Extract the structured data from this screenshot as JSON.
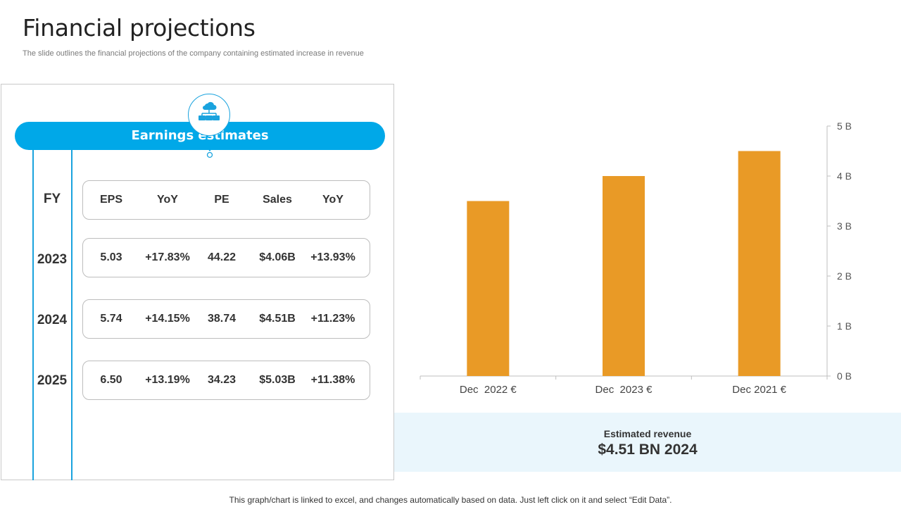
{
  "header": {
    "title": "Financial projections",
    "subtitle": "The slide outlines the financial projections of the company containing estimated increase in revenue"
  },
  "earnings": {
    "banner_label": "Earnings estimates",
    "icon": "cloud-network-icon",
    "fy_label": "FY",
    "columns": [
      "EPS",
      "YoY",
      "PE",
      "Sales",
      "YoY"
    ],
    "rows": [
      {
        "year": "2023",
        "values": [
          "5.03",
          "+17.83%",
          "44.22",
          "$4.06B",
          "+13.93%"
        ]
      },
      {
        "year": "2024",
        "values": [
          "5.74",
          "+14.15%",
          "38.74",
          "$4.51B",
          "+11.23%"
        ]
      },
      {
        "year": "2025",
        "values": [
          "6.50",
          "+13.19%",
          "34.23",
          "$5.03B",
          "+11.38%"
        ]
      }
    ]
  },
  "revenue": {
    "label": "Estimated revenue",
    "value": "$4.51 BN 2024"
  },
  "footer": {
    "note": "This graph/chart is linked to excel, and changes automatically based on data. Just left click on it and select “Edit Data”."
  },
  "colors": {
    "accent": "#00a8e8",
    "bar": "#e99a26",
    "revenue_bg": "#eaf6fc"
  },
  "chart_data": {
    "type": "bar",
    "title": "",
    "xlabel": "",
    "ylabel": "",
    "categories": [
      "Dec  2022 €",
      "Dec  2023 €",
      "Dec 2021 €"
    ],
    "values": [
      3.5,
      4.0,
      4.5
    ],
    "ylim": [
      0,
      5
    ],
    "yticks": [
      0,
      1,
      2,
      3,
      4,
      5
    ],
    "ytick_labels": [
      "0 B",
      "1 B",
      "2 B",
      "3 B",
      "4 B",
      "5 B"
    ],
    "y_axis_side": "right",
    "grid": false,
    "legend": "none"
  }
}
